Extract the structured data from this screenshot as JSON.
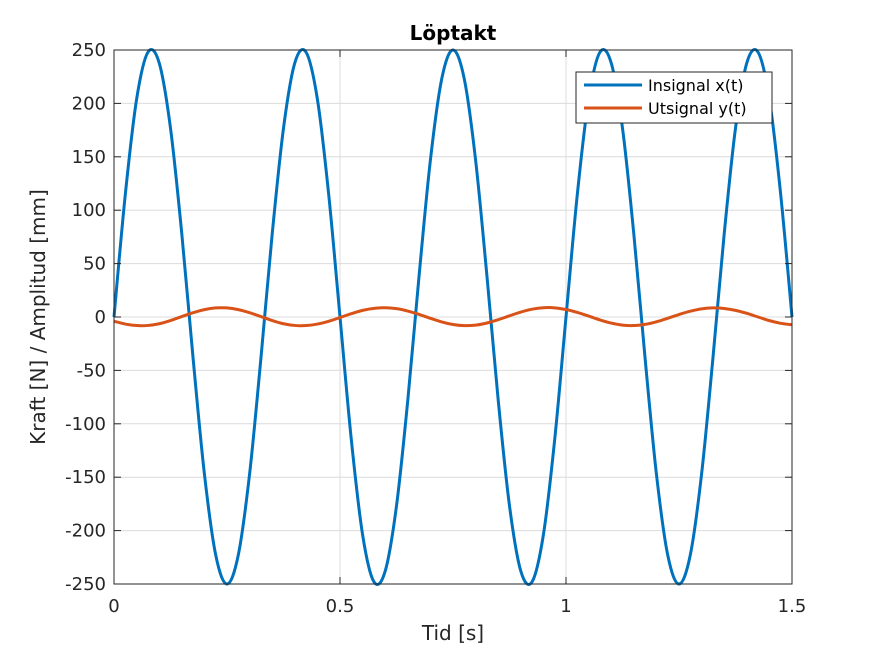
{
  "chart_data": {
    "type": "line",
    "title": "Löptakt",
    "xlabel": "Tid [s]",
    "ylabel": "Kraft [N] / Amplitud [mm]",
    "xlim": [
      0,
      1.5
    ],
    "ylim": [
      -250,
      250
    ],
    "xticks": [
      0,
      0.5,
      1,
      1.5
    ],
    "xtick_labels": [
      "0",
      "0.5",
      "1",
      "1.5"
    ],
    "yticks": [
      250,
      200,
      150,
      100,
      50,
      0,
      -50,
      -100,
      -150,
      -200,
      -250
    ],
    "ytick_labels": [
      "250",
      "200",
      "150",
      "100",
      "50",
      "0",
      "-50",
      "-100",
      "-150",
      "-200",
      "-250"
    ],
    "grid": true,
    "legend_position": "top-right",
    "series": [
      {
        "name": "Insignal x(t)",
        "color": "#0072BD",
        "x": [
          0,
          0.025,
          0.05,
          0.075,
          0.1,
          0.125,
          0.15,
          0.175,
          0.2,
          0.225,
          0.25,
          0.275,
          0.3,
          0.325,
          0.35,
          0.375,
          0.4,
          0.425,
          0.45,
          0.475,
          0.5,
          0.525,
          0.55,
          0.575,
          0.6,
          0.625,
          0.65,
          0.675,
          0.7,
          0.725,
          0.75,
          0.775,
          0.8,
          0.825,
          0.85,
          0.875,
          0.9,
          0.925,
          0.95,
          0.975,
          1.0,
          1.025,
          1.05,
          1.075,
          1.1,
          1.125,
          1.15,
          1.175,
          1.2,
          1.225,
          1.25,
          1.275,
          1.3,
          1.325,
          1.35,
          1.375,
          1.4,
          1.425,
          1.45,
          1.475,
          1.5
        ],
        "y": [
          0,
          114.7,
          203.9,
          247.9,
          237.9,
          176.8,
          77.8,
          -38.8,
          -146.9,
          -222.8,
          -250,
          -222.8,
          -146.9,
          -38.8,
          77.8,
          176.8,
          237.9,
          247.9,
          203.9,
          114.7,
          0,
          -114.7,
          -203.9,
          -247.9,
          -237.9,
          -176.8,
          -77.8,
          38.8,
          146.9,
          222.8,
          250,
          222.8,
          146.9,
          38.8,
          -77.8,
          -176.8,
          -237.9,
          -247.9,
          -203.9,
          -114.7,
          0,
          114.7,
          203.9,
          247.9,
          237.9,
          176.8,
          77.8,
          -38.8,
          -146.9,
          -222.8,
          -250,
          -222.8,
          -146.9,
          -38.8,
          77.8,
          176.8,
          237.9,
          247.9,
          203.9,
          114.7,
          0
        ]
      },
      {
        "name": "Utsignal y(t)",
        "color": "#D95319",
        "x": [
          0,
          0.025,
          0.05,
          0.075,
          0.1,
          0.125,
          0.15,
          0.175,
          0.2,
          0.225,
          0.25,
          0.275,
          0.3,
          0.325,
          0.35,
          0.375,
          0.4,
          0.425,
          0.45,
          0.475,
          0.5,
          0.525,
          0.55,
          0.575,
          0.6,
          0.625,
          0.65,
          0.675,
          0.7,
          0.725,
          0.75,
          0.775,
          0.8,
          0.825,
          0.85,
          0.875,
          0.9,
          0.925,
          0.95,
          0.975,
          1.0,
          1.025,
          1.05,
          1.075,
          1.1,
          1.125,
          1.15,
          1.175,
          1.2,
          1.225,
          1.25,
          1.275,
          1.3,
          1.325,
          1.35,
          1.375,
          1.4,
          1.425,
          1.45,
          1.475,
          1.5
        ],
        "y": [
          -4,
          -6.6,
          -8,
          -7.9,
          -6.3,
          -3.3,
          0.4,
          4,
          6.9,
          8.5,
          8.5,
          6.9,
          4,
          0.4,
          -3.3,
          -6.3,
          -7.9,
          -8,
          -6.6,
          -4,
          -0.5,
          3.1,
          6.2,
          8.1,
          8.7,
          7.8,
          5.6,
          2.4,
          -1.2,
          -4.6,
          -7,
          -8.1,
          -7.6,
          -5.6,
          -2.5,
          1.1,
          4.6,
          7.3,
          8.7,
          8.6,
          7,
          4.3,
          0.9,
          -2.7,
          -5.7,
          -7.6,
          -8,
          -6.9,
          -4.5,
          -1.2,
          2.3,
          5.4,
          7.6,
          8.5,
          8,
          6.2,
          3.4,
          0,
          -3.4,
          -5.9,
          -7.3
        ]
      }
    ]
  }
}
